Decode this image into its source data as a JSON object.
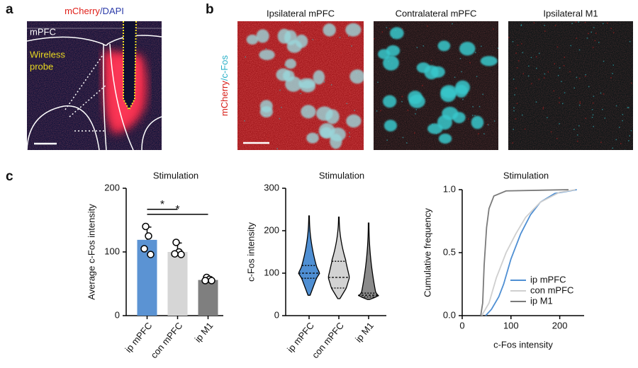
{
  "panel_labels": {
    "a": "a",
    "b": "b",
    "c": "c"
  },
  "panel_a": {
    "title_parts": [
      "mCherry",
      "/DAPI"
    ],
    "region": "mPFC",
    "probe_lines": [
      "Wireless",
      "probe"
    ]
  },
  "panel_b": {
    "side_label_parts": [
      "mCherry",
      "/c-Fos"
    ],
    "images": [
      "Ipsilateral mPFC",
      "Contralateral mPFC",
      "Ipsilateral M1"
    ]
  },
  "chart_data": [
    {
      "type": "bar",
      "title": "Stimulation",
      "y_label": "Average c-Fos intensity",
      "categories": [
        "ip mPFC",
        "con mPFC",
        "ip M1"
      ],
      "values": [
        119,
        100,
        56
      ],
      "errors": [
        20,
        14,
        5
      ],
      "points": [
        [
          140,
          125,
          105,
          96
        ],
        [
          115,
          100,
          97,
          96
        ],
        [
          60,
          57,
          55,
          55
        ]
      ],
      "colors": [
        "#5b93d3",
        "#d6d6d6",
        "#7f7f7f"
      ],
      "ylim": [
        0,
        200
      ],
      "yticks": [
        0,
        100,
        200
      ],
      "annotations": [
        {
          "text": "*",
          "from": 0,
          "to": 1,
          "y": 167
        },
        {
          "text": "*",
          "from": 0,
          "to": 2,
          "y": 159
        }
      ]
    },
    {
      "type": "violin",
      "title": "Stimulation",
      "y_label": "c-Fos intensity",
      "categories": [
        "ip mPFC",
        "con mPFC",
        "ip M1"
      ],
      "stats": [
        {
          "min": 48,
          "q1": 88,
          "median": 100,
          "q3": 118,
          "max": 235
        },
        {
          "min": 40,
          "q1": 65,
          "median": 90,
          "q3": 128,
          "max": 232
        },
        {
          "min": 38,
          "q1": 44,
          "median": 48,
          "q3": 53,
          "max": 218
        }
      ],
      "colors": [
        "#4f8fd3",
        "#d3d3d3",
        "#8a8a8a"
      ],
      "ylim": [
        0,
        300
      ],
      "yticks": [
        0,
        100,
        200,
        300
      ]
    },
    {
      "type": "line",
      "title": "Stimulation",
      "x_label": "c-Fos intensity",
      "y_label": "Cumulative frequency",
      "xlim": [
        0,
        250
      ],
      "xticks": [
        0,
        100,
        200
      ],
      "ylim": [
        0,
        1
      ],
      "yticks": [
        {
          "value": 0,
          "label": "0.0"
        },
        {
          "value": 0.5,
          "label": "0.5"
        },
        {
          "value": 1,
          "label": "1.0"
        }
      ],
      "legend": "lower right",
      "series": [
        {
          "name": "ip mPFC",
          "color": "#4f8fd3",
          "x": [
            48,
            60,
            75,
            85,
            100,
            120,
            140,
            160,
            190,
            235
          ],
          "values": [
            0,
            0.05,
            0.15,
            0.25,
            0.45,
            0.65,
            0.8,
            0.9,
            0.97,
            1
          ]
        },
        {
          "name": "con mPFC",
          "color": "#cfcfcf",
          "x": [
            40,
            55,
            70,
            90,
            110,
            130,
            160,
            200,
            232
          ],
          "values": [
            0,
            0.1,
            0.3,
            0.5,
            0.65,
            0.78,
            0.9,
            0.98,
            1
          ]
        },
        {
          "name": "ip M1",
          "color": "#7a7a7a",
          "x": [
            38,
            42,
            45,
            50,
            55,
            65,
            90,
            218
          ],
          "values": [
            0,
            0.1,
            0.4,
            0.7,
            0.85,
            0.95,
            0.99,
            1
          ]
        }
      ]
    }
  ]
}
